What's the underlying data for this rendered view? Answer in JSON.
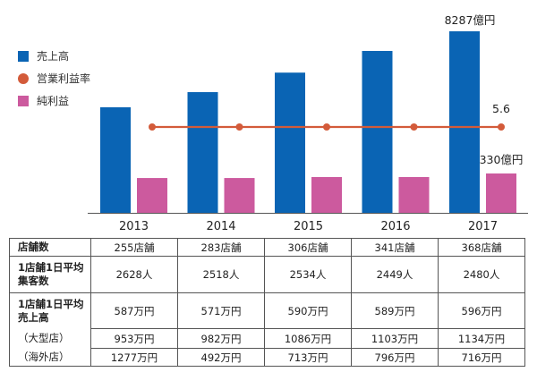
{
  "chart_data": {
    "type": "bar",
    "title": "",
    "categories": [
      "2013",
      "2014",
      "2015",
      "2016",
      "2017"
    ],
    "series": [
      {
        "name": "売上高",
        "kind": "bar",
        "color": "#0a64b4",
        "values": [
          4820,
          5510,
          6400,
          7390,
          8287
        ]
      },
      {
        "name": "営業利益率",
        "kind": "line",
        "color": "#d35b3a",
        "values": [
          5.6,
          5.6,
          5.6,
          5.6,
          5.6
        ]
      },
      {
        "name": "純利益",
        "kind": "bar",
        "color": "#cc5a9e",
        "values": [
          292,
          292,
          300,
          300,
          330
        ]
      }
    ],
    "annotations": [
      {
        "series": "売上高",
        "category": "2017",
        "text": "8287億円"
      },
      {
        "series": "営業利益率",
        "category": "2017",
        "text": "5.6"
      },
      {
        "series": "純利益",
        "category": "2017",
        "text": "330億円"
      }
    ],
    "legend_position": "top-left",
    "grid": false,
    "xlabel": "",
    "ylabel": ""
  },
  "legend": [
    {
      "label": "売上高",
      "shape": "square",
      "color": "#0a64b4"
    },
    {
      "label": "営業利益率",
      "shape": "circle",
      "color": "#d35b3a"
    },
    {
      "label": "純利益",
      "shape": "square",
      "color": "#cc5a9e"
    }
  ],
  "table": {
    "rows": [
      {
        "label": "店舗数",
        "values": [
          "255店舗",
          "283店舗",
          "306店舗",
          "341店舗",
          "368店舗"
        ]
      },
      {
        "label_lines": [
          "1店舗1日平均",
          "集客数"
        ],
        "values": [
          "2628人",
          "2518人",
          "2534人",
          "2449人",
          "2480人"
        ]
      },
      {
        "label_lines": [
          "1店舗1日平均",
          "売上高"
        ],
        "values": [
          "587万円",
          "571万円",
          "590万円",
          "589万円",
          "596万円"
        ]
      },
      {
        "label": "（大型店）",
        "values": [
          "953万円",
          "982万円",
          "1086万円",
          "1103万円",
          "1134万円"
        ]
      },
      {
        "label": "（海外店）",
        "values": [
          "1277万円",
          "492万円",
          "713万円",
          "796万円",
          "716万円"
        ]
      }
    ]
  }
}
